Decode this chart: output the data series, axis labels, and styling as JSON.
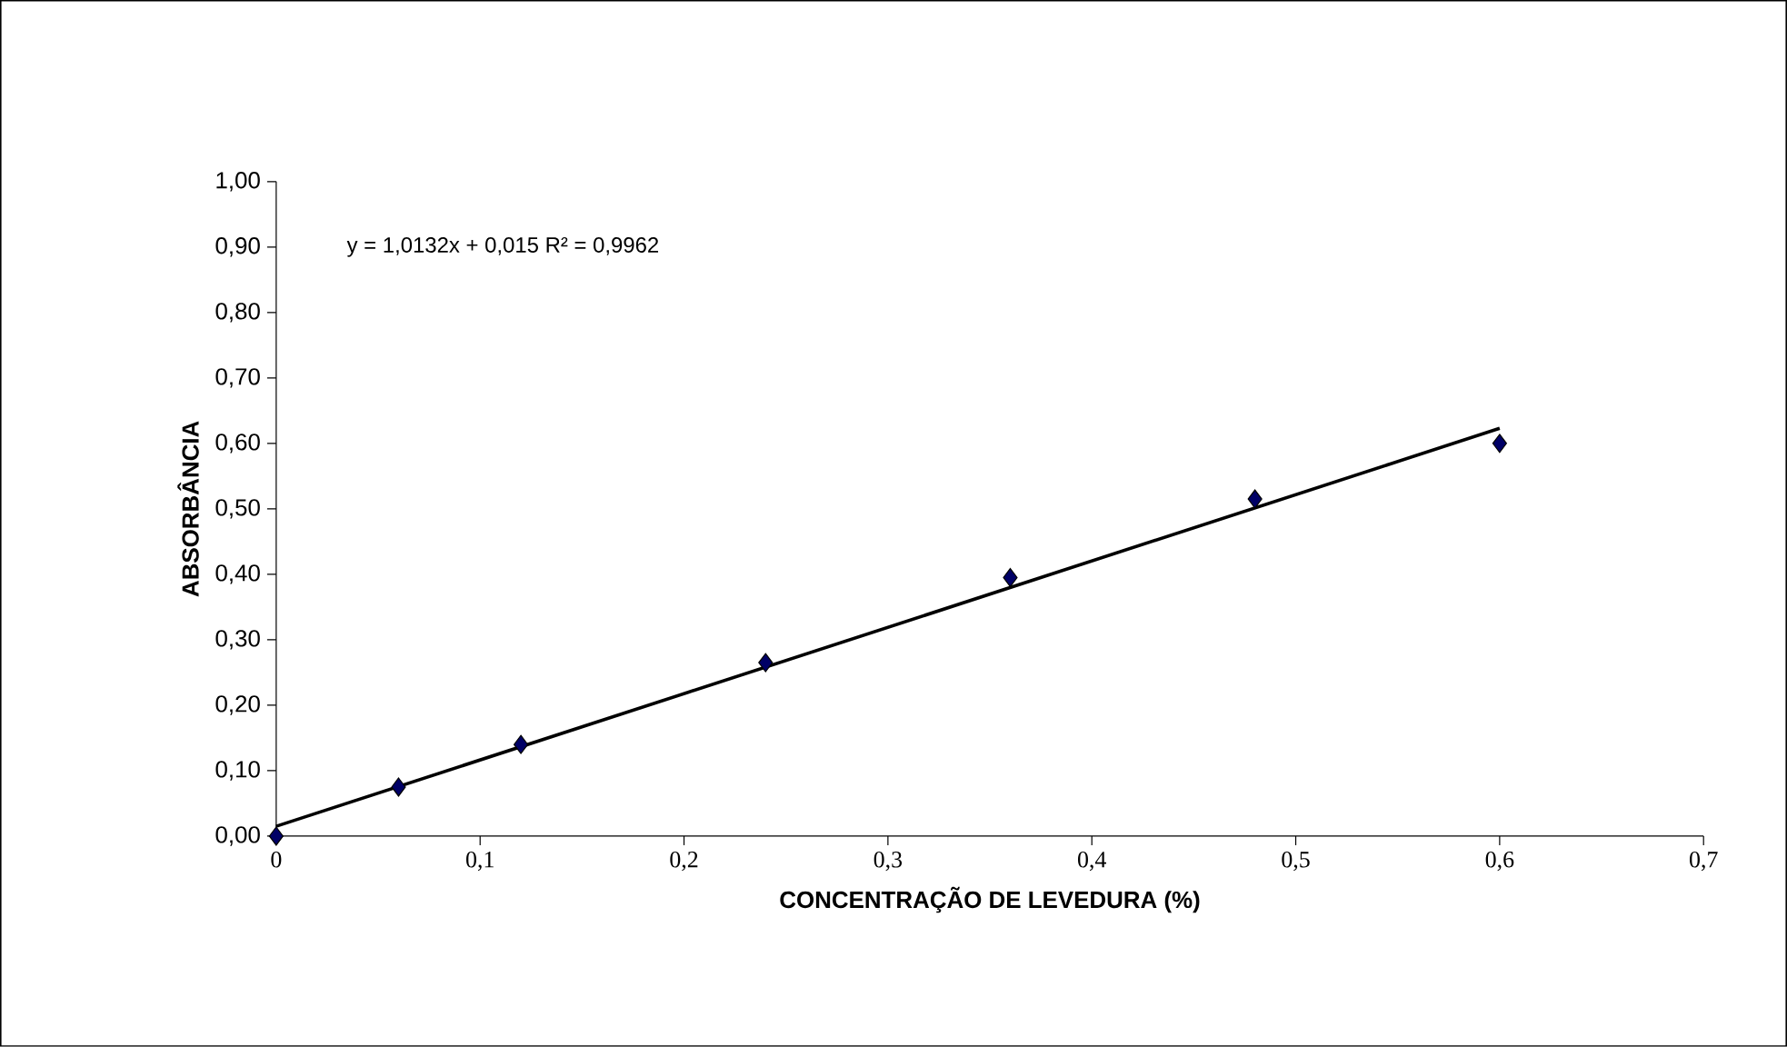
{
  "chart_data": {
    "type": "scatter",
    "xlabel": "CONCENTRAÇÃO DE  LEVEDURA (%)",
    "ylabel": "ABSORBÂNCIA",
    "marker": "diamond",
    "annotations": [
      "y = 1,0132x + 0,015   R² = 0,9962"
    ],
    "xlim": [
      0,
      0.7
    ],
    "ylim": [
      0,
      1.0
    ],
    "xticks": [
      0,
      {
        "value": 0.1,
        "label": "0,1"
      },
      {
        "value": 0.2,
        "label": "0,2"
      },
      {
        "value": 0.3,
        "label": "0,3"
      },
      {
        "value": 0.4,
        "label": "0,4"
      },
      {
        "value": 0.5,
        "label": "0,5"
      },
      {
        "value": 0.6,
        "label": "0,6"
      },
      {
        "value": 0.7,
        "label": "0,7"
      }
    ],
    "yticks": [
      {
        "value": 0,
        "label": "0,00"
      },
      {
        "value": 0.1,
        "label": "0,10"
      },
      {
        "value": 0.2,
        "label": "0,20"
      },
      {
        "value": 0.3,
        "label": "0,30"
      },
      {
        "value": 0.4,
        "label": "0,40"
      },
      {
        "value": 0.5,
        "label": "0,50"
      },
      {
        "value": 0.6,
        "label": "0,60"
      },
      {
        "value": 0.7,
        "label": "0,70"
      },
      {
        "value": 0.8,
        "label": "0,80"
      },
      {
        "value": 0.9,
        "label": "0,90"
      },
      {
        "value": 1.0,
        "label": "1,00"
      }
    ],
    "series": [
      {
        "type": "line",
        "marker": "none",
        "color": "#000000",
        "x": [
          0,
          0.6
        ],
        "values": [
          0.015,
          0.623
        ]
      },
      {
        "color": "#000066",
        "x": [
          0,
          0.06,
          0.12,
          0.24,
          0.36,
          0.48,
          0.6
        ],
        "values": [
          0.0,
          0.075,
          0.14,
          0.265,
          0.395,
          0.515,
          0.6
        ]
      }
    ]
  }
}
